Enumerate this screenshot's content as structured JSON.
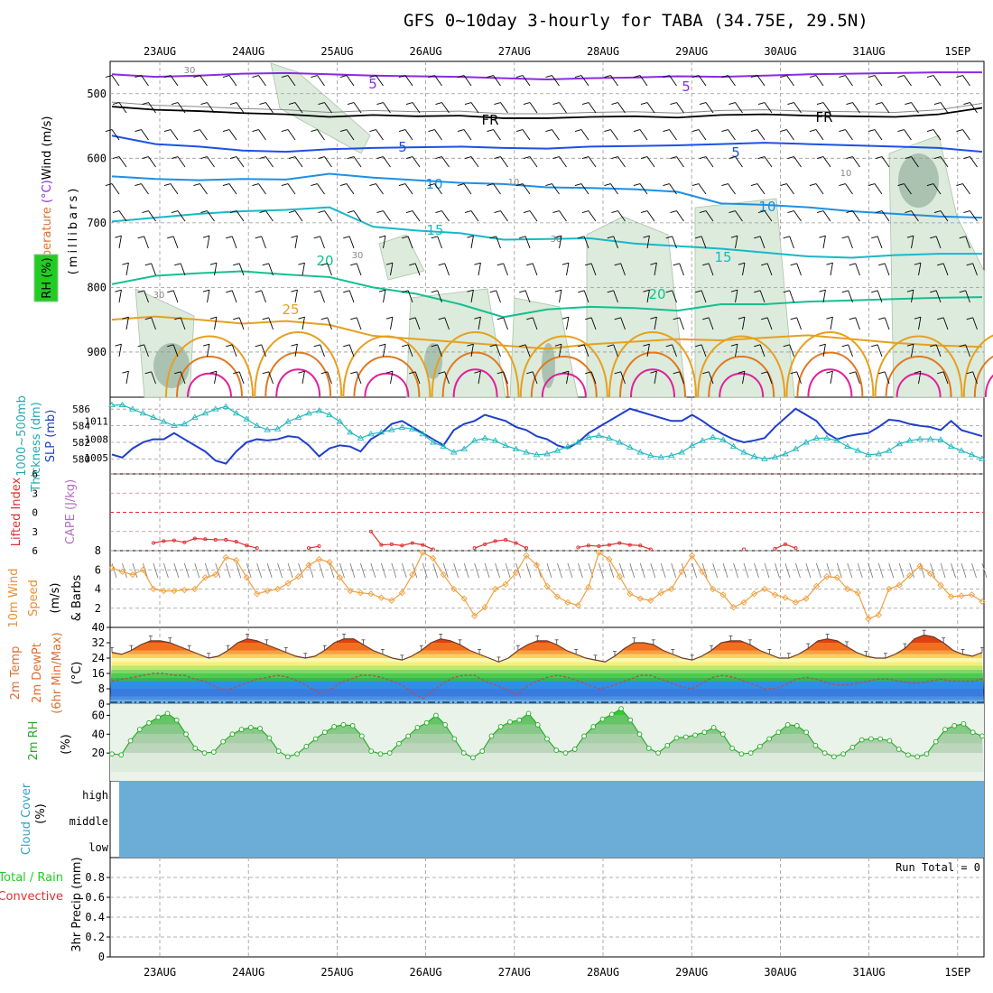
{
  "title": "GFS 0~10day 3-hourly for TABA (34.75E, 29.5N)",
  "dates": [
    "23AUG",
    "24AUG",
    "25AUG",
    "26AUG",
    "27AUG",
    "28AUG",
    "29AUG",
    "30AUG",
    "31AUG",
    "1SEP"
  ],
  "colors": {
    "grid": "#999999",
    "temp": "#2255cc",
    "rhfill": "#dcebdc",
    "rhdark": "#9fb8a6",
    "slp": "#1f3fcc",
    "thick": "#22b8c0",
    "li": "#e03030",
    "wind": "#f0a040",
    "rh2m": "#33cc33",
    "cloud": "#6badd6",
    "precip": "#33cc33"
  },
  "chart_data": [
    {
      "panel": "upper_air",
      "type": "line",
      "ylabel_parts": [
        "Wind (m/s)",
        "Temperature (°C)",
        "RH (%)",
        "(millibars)"
      ],
      "yticks": [
        500,
        600,
        700,
        800,
        900
      ],
      "ylim": [
        450,
        970
      ],
      "x_hours": [
        0,
        12,
        24,
        36,
        48,
        60,
        72,
        84,
        96,
        108,
        120,
        132,
        144,
        156,
        168,
        180,
        192,
        204,
        216,
        228,
        240
      ],
      "series": [
        {
          "name": "-5",
          "label": "-5",
          "color": "#8a2be2",
          "values": [
            470,
            474,
            472,
            469,
            468,
            470,
            472,
            473,
            474,
            476,
            478,
            476,
            475,
            473,
            474,
            472,
            470,
            469,
            468,
            467,
            467
          ]
        },
        {
          "name": "FR",
          "label": "FR",
          "color": "#000000",
          "values": [
            520,
            525,
            527,
            530,
            532,
            536,
            533,
            535,
            534,
            538,
            538,
            536,
            535,
            537,
            533,
            532,
            534,
            535,
            536,
            532,
            522
          ]
        },
        {
          "name": "-5b",
          "label": "-5",
          "color": "#1e50e6",
          "values": [
            565,
            578,
            582,
            588,
            590,
            586,
            584,
            583,
            582,
            584,
            585,
            582,
            581,
            580,
            578,
            576,
            578,
            580,
            582,
            584,
            590
          ]
        },
        {
          "name": "-10",
          "label": "-10",
          "color": "#1e8fe6",
          "values": [
            628,
            632,
            634,
            632,
            633,
            624,
            630,
            634,
            638,
            640,
            645,
            646,
            648,
            652,
            670,
            672,
            676,
            682,
            686,
            690,
            692
          ]
        },
        {
          "name": "-15",
          "label": "-15",
          "color": "#18b8c8",
          "values": [
            698,
            692,
            686,
            682,
            680,
            676,
            706,
            712,
            716,
            726,
            725,
            724,
            732,
            736,
            740,
            746,
            752,
            754,
            750,
            748,
            748
          ]
        },
        {
          "name": "-20",
          "label": "-20",
          "color": "#14c090",
          "values": [
            795,
            782,
            778,
            775,
            780,
            784,
            800,
            810,
            826,
            846,
            834,
            830,
            832,
            836,
            826,
            826,
            822,
            820,
            818,
            816,
            815
          ]
        },
        {
          "name": "-25",
          "label": "-25",
          "color": "#e6a020",
          "values": [
            850,
            845,
            850,
            856,
            852,
            858,
            875,
            880,
            885,
            890,
            895,
            888,
            884,
            880,
            882,
            878,
            874,
            880,
            886,
            890,
            892
          ]
        }
      ],
      "contour_labels": [
        "-5",
        "FR",
        "-5",
        "-10",
        "-15",
        "-20",
        "-25",
        "-5",
        "FR",
        "-5",
        "-10",
        "-15",
        "-20",
        "30",
        "10",
        "10",
        "30",
        "30",
        "30"
      ]
    },
    {
      "panel": "slp_thickness",
      "type": "line",
      "ylabel_parts": [
        "1000~500mb",
        "Thickness (dm)",
        "SLP (mb)"
      ],
      "yticks_left": [
        580,
        582,
        584,
        586
      ],
      "yticks_right": [
        1005,
        1008,
        1011
      ],
      "series": [
        {
          "name": "SLP (mb)",
          "values": [
            1005.5,
            1005,
            1006.5,
            1007.5,
            1008,
            1008,
            1009,
            1008,
            1007,
            1006,
            1004.5,
            1004,
            1006,
            1007.5,
            1008,
            1007.8,
            1008,
            1008.5,
            1008.3,
            1007,
            1005.2,
            1006.5,
            1007,
            1006.8,
            1006,
            1008,
            1009,
            1010.5,
            1011,
            1010,
            1009,
            1008,
            1007,
            1009.5,
            1010.5,
            1011,
            1012,
            1011.5,
            1011,
            1010,
            1009.5,
            1008.5,
            1008,
            1007,
            1006.5,
            1007.5,
            1009,
            1010,
            1011,
            1012,
            1013,
            1012.5,
            1012,
            1011.5,
            1011,
            1011,
            1012,
            1011,
            1009.8,
            1008.8,
            1008,
            1007.5,
            1007.8,
            1008.2,
            1010,
            1011.5,
            1013,
            1012,
            1011,
            1009,
            1008,
            1008.5,
            1008.8,
            1009,
            1010,
            1011.2,
            1011,
            1010.5,
            1010.2,
            1010,
            1009.5,
            1011,
            1009.5,
            1009,
            1008.5
          ]
        },
        {
          "name": "1000~500mb Thickness (dm)",
          "values": [
            586.5,
            586.5,
            586,
            585.5,
            585,
            584.5,
            584,
            584.2,
            585,
            585.5,
            586,
            586.3,
            585.5,
            584.8,
            584,
            583.5,
            583.6,
            584.5,
            585,
            585.5,
            585.8,
            585.3,
            584.5,
            583.2,
            582.5,
            583,
            583.2,
            583.5,
            583.8,
            583.6,
            583,
            582,
            581.5,
            580.8,
            581.2,
            582.2,
            582.5,
            582.2,
            581.6,
            581.2,
            580.8,
            580.5,
            580.6,
            581,
            581.5,
            582,
            582.6,
            582.8,
            582.5,
            582,
            581.4,
            580.8,
            580.4,
            580.2,
            580.4,
            580.8,
            581.6,
            582.2,
            582.6,
            582.3,
            581.5,
            580.8,
            580.3,
            580,
            580.2,
            580.6,
            581.2,
            582,
            582.5,
            582.5,
            582.2,
            581.5,
            581,
            580.5,
            580.6,
            581,
            581.8,
            582.2,
            582.4,
            582.4,
            582.3,
            581.5,
            581,
            580.5,
            580
          ]
        }
      ]
    },
    {
      "panel": "cape_li",
      "type": "line",
      "ylabel_parts": [
        "Lifted Index",
        "CAPE (J/kg)"
      ],
      "yticks": [
        -6,
        -3,
        0,
        3,
        6
      ],
      "tick_labels": [
        "6",
        "3",
        "0",
        "3",
        "6"
      ],
      "series": [
        {
          "name": "Lifted Index",
          "values": [
            null,
            null,
            null,
            null,
            4.8,
            4.5,
            4.4,
            4.7,
            4.1,
            4.2,
            4.3,
            4.3,
            4.6,
            5.2,
            5.6,
            null,
            null,
            null,
            null,
            5.6,
            5.3,
            null,
            null,
            null,
            null,
            3.0,
            5.1,
            5.0,
            5.2,
            4.8,
            5.1,
            5.8,
            null,
            null,
            null,
            5.6,
            5.0,
            4.5,
            4.3,
            4.8,
            5.6,
            null,
            null,
            null,
            null,
            5.5,
            5.2,
            5.3,
            5.1,
            4.8,
            5.1,
            5.2,
            5.8,
            null,
            null,
            null,
            null,
            null,
            null,
            null,
            null,
            5.8,
            null,
            null,
            5.7,
            5.0,
            5.6,
            null,
            null,
            null,
            null,
            null,
            null,
            null,
            null,
            null,
            null,
            null,
            null,
            null,
            null,
            null,
            null,
            null,
            null
          ]
        }
      ]
    },
    {
      "panel": "wind10m",
      "type": "line",
      "ylabel_parts": [
        "10m Wind",
        "Speed",
        "(m/s)",
        "& Barbs"
      ],
      "yticks": [
        2,
        4,
        6,
        8
      ],
      "ylim": [
        0,
        8
      ],
      "series": [
        {
          "name": "10m Wind Speed (m/s)",
          "values": [
            6.2,
            5.8,
            5.5,
            6.0,
            4.0,
            3.8,
            3.8,
            3.9,
            4.0,
            5.2,
            5.5,
            7.3,
            7.0,
            5.2,
            3.5,
            3.8,
            4.0,
            4.6,
            5.3,
            6.5,
            7.1,
            6.8,
            5.2,
            3.8,
            3.6,
            3.5,
            3.1,
            2.8,
            3.6,
            5.5,
            7.8,
            7.2,
            5.5,
            4.0,
            3.0,
            1.2,
            2.1,
            4.0,
            4.5,
            5.7,
            7.5,
            6.5,
            4.3,
            3.2,
            2.6,
            2.3,
            4.2,
            7.8,
            7.1,
            5.3,
            3.5,
            3.0,
            2.8,
            3.6,
            4.0,
            5.8,
            7.5,
            5.8,
            4.0,
            3.4,
            2.1,
            2.6,
            3.5,
            4.0,
            3.4,
            3.1,
            2.6,
            3.0,
            4.3,
            5.3,
            5.2,
            4.0,
            3.6,
            0.9,
            1.3,
            4.0,
            4.4,
            5.4,
            6.4,
            5.6,
            4.4,
            3.2,
            3.3,
            3.4,
            2.7
          ]
        }
      ]
    },
    {
      "panel": "temp2m",
      "type": "area",
      "ylabel_parts": [
        "2m Temp",
        "2m DewPt",
        "(6hr Min/Max)",
        "(°C)"
      ],
      "yticks": [
        0,
        8,
        16,
        24,
        32,
        40
      ],
      "ylim": [
        0,
        40
      ],
      "series": [
        {
          "name": "2m Temp (°C)",
          "values": [
            27,
            26,
            28,
            31,
            33,
            33,
            32,
            30,
            28,
            26,
            24,
            25,
            28,
            32,
            34,
            33,
            31,
            29,
            27,
            25,
            24,
            25,
            28,
            32,
            34,
            34,
            31,
            28,
            26,
            24,
            23,
            25,
            28,
            32,
            34,
            33,
            31,
            28,
            26,
            24,
            22,
            24,
            28,
            31,
            33,
            33,
            31,
            28,
            26,
            24,
            23,
            22,
            25,
            29,
            32,
            32,
            31,
            28,
            26,
            24,
            23,
            25,
            28,
            32,
            33,
            33,
            31,
            28,
            26,
            24,
            24,
            26,
            29,
            33,
            34,
            33,
            30,
            27,
            25,
            24,
            24,
            26,
            29,
            34,
            36,
            35,
            32,
            28,
            26,
            25,
            27
          ]
        },
        {
          "name": "2m DewPt (°C)",
          "values": [
            12,
            13,
            14,
            15,
            16,
            16,
            15,
            15,
            13,
            12,
            9,
            7,
            9,
            11,
            13,
            14,
            15,
            14,
            12,
            9,
            6,
            7,
            11,
            13,
            15,
            15,
            14,
            12,
            10,
            6,
            3,
            7,
            11,
            14,
            15,
            15,
            12,
            10,
            8,
            5,
            9,
            12,
            14,
            15,
            14,
            12,
            10,
            8,
            9,
            11,
            13,
            15,
            15,
            13,
            11,
            9,
            8,
            11,
            14,
            15,
            14,
            12,
            10,
            8,
            8,
            10,
            13,
            14,
            13,
            11,
            10,
            10,
            11,
            12,
            13,
            13,
            12,
            11,
            11,
            12,
            13,
            12,
            12,
            12,
            13
          ]
        }
      ]
    },
    {
      "panel": "rh2m",
      "type": "area",
      "ylabel_parts": [
        "2m RH",
        "(%)"
      ],
      "yticks": [
        20,
        40,
        60
      ],
      "ylim": [
        0,
        70
      ],
      "series": [
        {
          "name": "2m RH (%)",
          "values": [
            19,
            18,
            33,
            45,
            52,
            58,
            62,
            55,
            40,
            25,
            20,
            21,
            32,
            40,
            45,
            47,
            46,
            36,
            22,
            16,
            19,
            27,
            35,
            42,
            48,
            50,
            49,
            38,
            22,
            19,
            20,
            30,
            38,
            47,
            52,
            60,
            50,
            35,
            20,
            15,
            22,
            38,
            48,
            53,
            55,
            62,
            50,
            35,
            23,
            20,
            24,
            38,
            48,
            56,
            61,
            67,
            55,
            40,
            25,
            20,
            28,
            36,
            37,
            39,
            42,
            47,
            40,
            25,
            19,
            20,
            27,
            35,
            42,
            50,
            49,
            42,
            28,
            20,
            16,
            19,
            26,
            34,
            35,
            35,
            33,
            24,
            18,
            16,
            19,
            32,
            45,
            49,
            51,
            42,
            38
          ]
        }
      ]
    },
    {
      "panel": "cloud",
      "type": "heatmap",
      "ylabel_parts": [
        "Cloud Cover",
        "(%)"
      ],
      "levels": [
        "high",
        "middle",
        "low"
      ]
    },
    {
      "panel": "precip",
      "type": "bar",
      "ylabel_parts": [
        "Total / Rain",
        "Convective",
        "3hr Precip (mm)"
      ],
      "yticks": [
        0,
        0.2,
        0.4,
        0.6,
        0.8
      ],
      "tick_labels": [
        "0",
        "0.2",
        "0.4",
        "0.6",
        "0.8"
      ],
      "ylim": [
        0,
        1
      ],
      "run_total": "Run Total = 0",
      "values": []
    }
  ]
}
